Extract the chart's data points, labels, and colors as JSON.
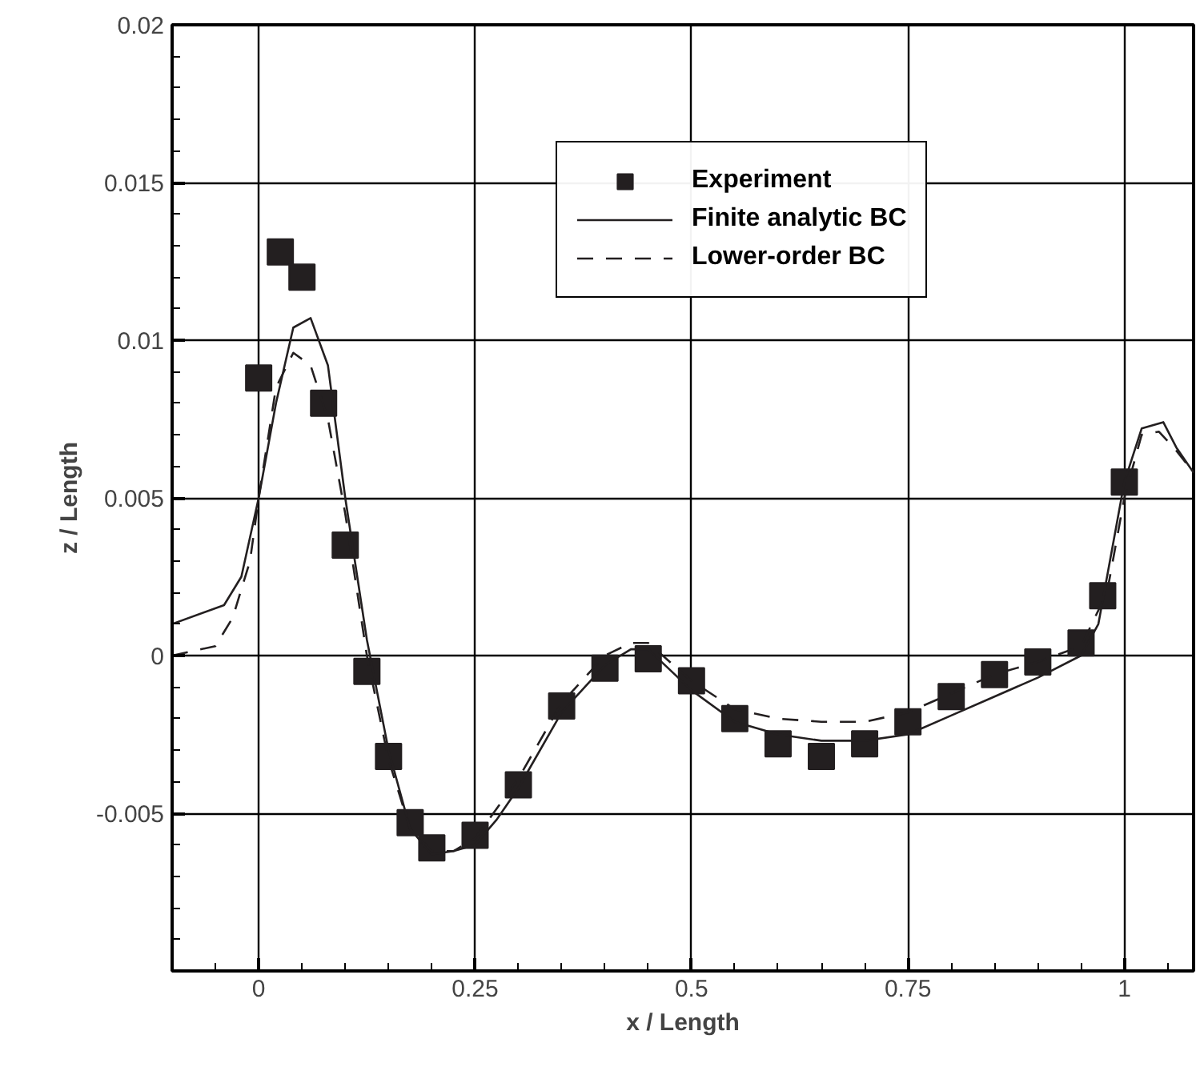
{
  "chart_data": {
    "type": "scatter",
    "xlabel": "x / Length",
    "ylabel": "z / Length",
    "xlim": [
      -0.1,
      1.08
    ],
    "ylim": [
      -0.01,
      0.02
    ],
    "xticks": [
      0,
      0.25,
      0.5,
      0.75,
      1
    ],
    "yticks": [
      -0.005,
      0,
      0.005,
      0.01,
      0.015,
      0.02
    ],
    "grid": true,
    "legend": "top right",
    "series": [
      {
        "name": "Experiment",
        "marker": "square",
        "color": "#231f20",
        "x": [
          0,
          0.025,
          0.05,
          0.075,
          0.1,
          0.125,
          0.15,
          0.175,
          0.2,
          0.25,
          0.3,
          0.35,
          0.4,
          0.45,
          0.5,
          0.55,
          0.6,
          0.65,
          0.7,
          0.75,
          0.8,
          0.85,
          0.9,
          0.95,
          0.975,
          1.0
        ],
        "values": [
          0.0088,
          0.0128,
          0.012,
          0.008,
          0.0035,
          -0.0005,
          -0.0032,
          -0.0053,
          -0.0061,
          -0.0057,
          -0.0041,
          -0.0016,
          -0.0004,
          -0.0001,
          -0.0008,
          -0.002,
          -0.0028,
          -0.0032,
          -0.0028,
          -0.0021,
          -0.0013,
          -0.0006,
          -0.0002,
          0.0004,
          0.0019,
          0.0055
        ]
      },
      {
        "name": "Finite analytic BC",
        "type": "line",
        "line_style": "solid",
        "color": "#231f20",
        "x": [
          -0.1,
          -0.04,
          -0.02,
          0,
          0.02,
          0.04,
          0.06,
          0.08,
          0.1,
          0.125,
          0.15,
          0.175,
          0.2,
          0.225,
          0.25,
          0.275,
          0.3,
          0.35,
          0.4,
          0.43,
          0.45,
          0.5,
          0.55,
          0.6,
          0.65,
          0.7,
          0.75,
          0.8,
          0.85,
          0.9,
          0.95,
          0.97,
          0.99,
          1.0,
          1.02,
          1.045,
          1.06,
          1.08
        ],
        "values": [
          0.001,
          0.0016,
          0.0025,
          0.005,
          0.008,
          0.0104,
          0.0107,
          0.0092,
          0.005,
          0.0005,
          -0.003,
          -0.0055,
          -0.0063,
          -0.0062,
          -0.006,
          -0.0052,
          -0.0042,
          -0.0018,
          -0.0003,
          0.0002,
          0.0002,
          -0.0011,
          -0.0021,
          -0.0025,
          -0.0027,
          -0.0027,
          -0.0025,
          -0.0019,
          -0.0013,
          -0.0007,
          0.0,
          0.001,
          0.004,
          0.0055,
          0.0072,
          0.0074,
          0.0066,
          0.0058
        ]
      },
      {
        "name": "Lower-order BC",
        "type": "line",
        "line_style": "dashed",
        "color": "#231f20",
        "x": [
          -0.1,
          -0.05,
          -0.03,
          -0.01,
          0,
          0.02,
          0.04,
          0.06,
          0.08,
          0.1,
          0.125,
          0.15,
          0.175,
          0.2,
          0.225,
          0.25,
          0.3,
          0.35,
          0.4,
          0.43,
          0.45,
          0.5,
          0.55,
          0.6,
          0.65,
          0.7,
          0.75,
          0.8,
          0.85,
          0.9,
          0.95,
          0.98,
          1.0,
          1.02,
          1.04,
          1.06,
          1.08
        ],
        "values": [
          0.0,
          0.0003,
          0.0012,
          0.003,
          0.005,
          0.0085,
          0.0096,
          0.0092,
          0.0075,
          0.0045,
          0.0,
          -0.0033,
          -0.0055,
          -0.0062,
          -0.0062,
          -0.0058,
          -0.0039,
          -0.0015,
          0.0,
          0.0004,
          0.0004,
          -0.0008,
          -0.0017,
          -0.002,
          -0.0021,
          -0.0021,
          -0.0018,
          -0.0012,
          -0.0006,
          -0.0002,
          0.0003,
          0.002,
          0.005,
          0.007,
          0.0071,
          0.0065,
          0.0058
        ]
      }
    ]
  }
}
